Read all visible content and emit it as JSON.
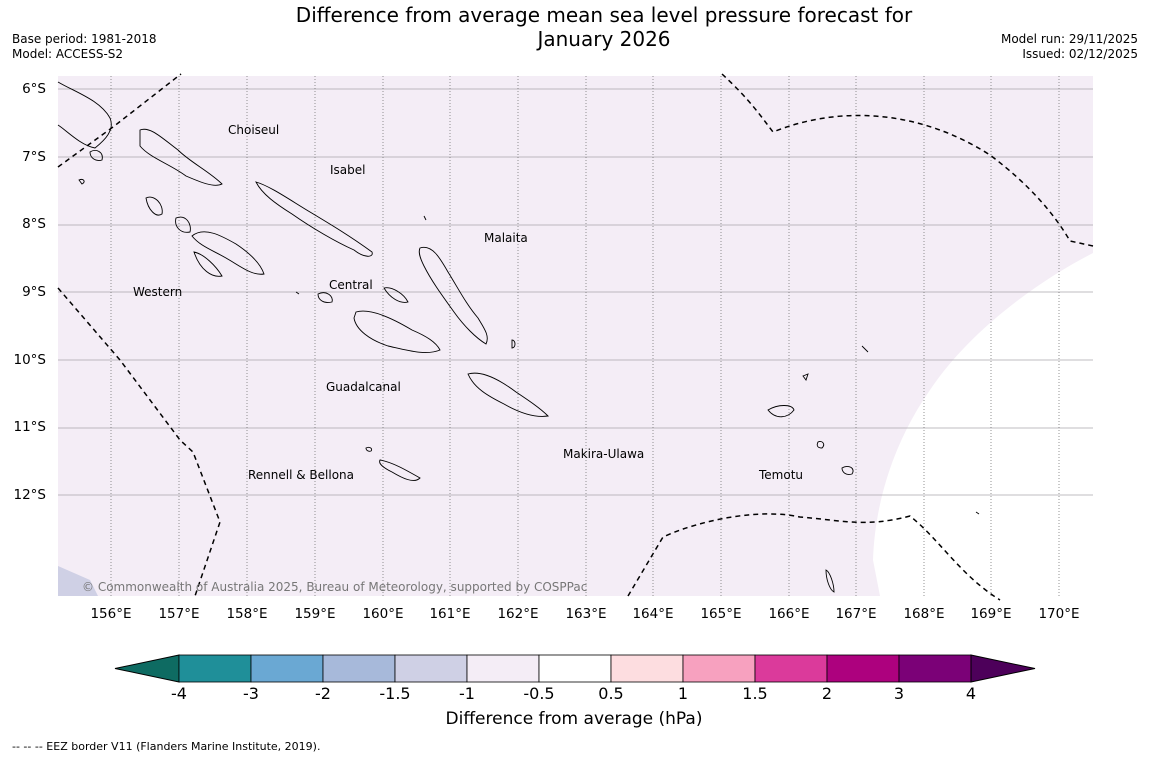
{
  "title": "Difference from average mean sea level pressure forecast for January 2026",
  "title_lines": [
    "Difference from average mean sea level pressure forecast for",
    "January 2026"
  ],
  "base_period": "Base period: 1981-2018",
  "model": "Model: ACCESS-S2",
  "model_run": "Model run: 29/11/2025",
  "issued": "Issued: 02/12/2025",
  "latitudes": [
    "6°S",
    "7°S",
    "8°S",
    "9°S",
    "10°S",
    "11°S",
    "12°S"
  ],
  "longitudes": [
    "156°E",
    "157°E",
    "158°E",
    "159°E",
    "160°E",
    "161°E",
    "162°E",
    "163°E",
    "164°E",
    "165°E",
    "166°E",
    "167°E",
    "168°E",
    "169°E",
    "170°E"
  ],
  "regions": [
    "Choiseul",
    "Isabel",
    "Malaita",
    "Central",
    "Western",
    "Guadalcanal",
    "Makira-Ulawa",
    "Rennell & Bellona",
    "Temotu"
  ],
  "copyright": "© Commonwealth of Australia 2025, Bureau of Meteorology, supported by COSPPac",
  "colorbar": {
    "ticks": [
      "-4",
      "-3",
      "-2",
      "-1.5",
      "-1",
      "-0.5",
      "0.5",
      "1",
      "1.5",
      "2",
      "3",
      "4"
    ],
    "colors": [
      "#0e6b62",
      "#1f8f99",
      "#6aa8d3",
      "#a7b9da",
      "#cfd0e5",
      "#f4edf6",
      "#ffffff",
      "#fddde0",
      "#f7a1bf",
      "#db3a9b",
      "#ad017e",
      "#7b0177",
      "#4d005a"
    ],
    "label": "Difference from average (hPa)"
  },
  "footnote": "--  --  -- EEZ border V11 (Flanders Marine Institute, 2019).",
  "map_colors": {
    "anomaly_fill": "#f4edf6",
    "ocean_white": "#ffffff",
    "corner_fill": "#cfd0e5"
  }
}
